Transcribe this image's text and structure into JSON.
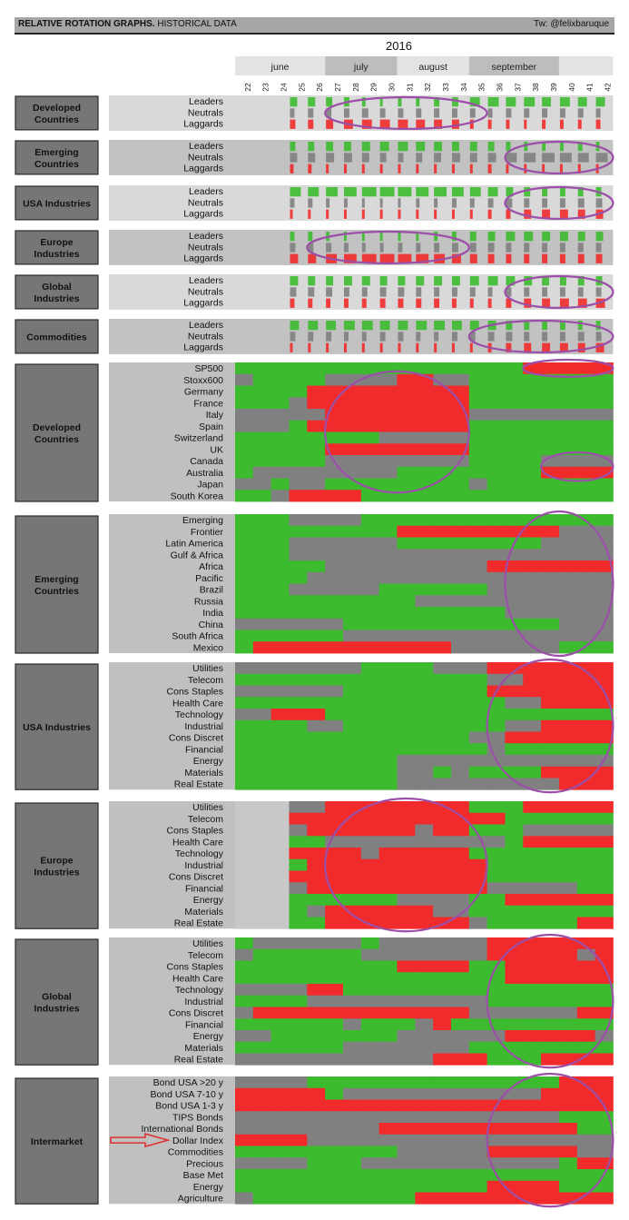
{
  "header": {
    "title_bold": "RELATIVE ROTATION GRAPHS.",
    "title_rest": " HISTORICAL DATA",
    "credit": "Tw: @felixbaruque"
  },
  "chart_data": {
    "type": "heatmap",
    "title": "2016",
    "months": [
      {
        "name": "june",
        "weeks": [
          22,
          23,
          24,
          25,
          26
        ]
      },
      {
        "name": "july",
        "weeks": [
          27,
          28,
          29,
          30
        ]
      },
      {
        "name": "august",
        "weeks": [
          31,
          32,
          33,
          34
        ]
      },
      {
        "name": "september",
        "weeks": [
          35,
          36,
          37,
          38,
          39
        ]
      }
    ],
    "weeks": [
      22,
      23,
      24,
      25,
      26,
      27,
      28,
      29,
      30,
      31,
      32,
      33,
      34,
      35,
      36,
      37,
      38,
      39,
      40,
      41,
      42
    ],
    "colors": {
      "leader": "#3dbb2f",
      "neutral": "#808080",
      "laggard": "#f12b2b",
      "empty": "#c8c8c8",
      "highlight": "#9b4fa8",
      "arrow": "#e03030"
    },
    "summary_sections": [
      {
        "group": "Developed Countries",
        "rows": [
          "Leaders",
          "Neutrals",
          "Laggards"
        ],
        "start_week": 25,
        "leaders": [
          0.4,
          0.4,
          0.35,
          0.3,
          0.2,
          0.15,
          0.2,
          0.2,
          0.3,
          0.35,
          0.55,
          0.6,
          0.55,
          0.6,
          0.5,
          0.55,
          0.5,
          0.5
        ],
        "neutrals": [
          0.25,
          0.3,
          0.3,
          0.3,
          0.35,
          0.3,
          0.3,
          0.3,
          0.3,
          0.3,
          0.3,
          0.25,
          0.3,
          0.3,
          0.3,
          0.3,
          0.3,
          0.25
        ],
        "laggards": [
          0.3,
          0.3,
          0.4,
          0.5,
          0.55,
          0.55,
          0.55,
          0.5,
          0.45,
          0.4,
          0.2,
          0.2,
          0.2,
          0.15,
          0.2,
          0.2,
          0.2,
          0.25
        ]
      },
      {
        "group": "Emerging Countries",
        "rows": [
          "Leaders",
          "Neutrals",
          "Laggards"
        ],
        "start_week": 25,
        "leaders": [
          0.3,
          0.35,
          0.4,
          0.4,
          0.45,
          0.5,
          0.55,
          0.5,
          0.45,
          0.4,
          0.4,
          0.35,
          0.25,
          0.2,
          0.2,
          0.2,
          0.25,
          0.2
        ],
        "neutrals": [
          0.4,
          0.4,
          0.45,
          0.45,
          0.4,
          0.35,
          0.3,
          0.35,
          0.4,
          0.45,
          0.4,
          0.45,
          0.6,
          0.65,
          0.7,
          0.65,
          0.6,
          0.65
        ],
        "laggards": [
          0.2,
          0.2,
          0.15,
          0.15,
          0.15,
          0.15,
          0.15,
          0.15,
          0.15,
          0.15,
          0.15,
          0.2,
          0.15,
          0.15,
          0.1,
          0.15,
          0.15,
          0.15
        ]
      },
      {
        "group": "USA Industries",
        "rows": [
          "Leaders",
          "Neutrals",
          "Laggards"
        ],
        "start_week": 25,
        "leaders": [
          0.6,
          0.6,
          0.65,
          0.7,
          0.8,
          0.8,
          0.75,
          0.7,
          0.7,
          0.65,
          0.6,
          0.55,
          0.4,
          0.35,
          0.3,
          0.3,
          0.3,
          0.3
        ],
        "neutrals": [
          0.25,
          0.25,
          0.2,
          0.2,
          0.15,
          0.15,
          0.15,
          0.2,
          0.2,
          0.25,
          0.25,
          0.3,
          0.35,
          0.3,
          0.3,
          0.3,
          0.35,
          0.35
        ],
        "laggards": [
          0.15,
          0.15,
          0.15,
          0.1,
          0.1,
          0.1,
          0.1,
          0.1,
          0.1,
          0.15,
          0.15,
          0.2,
          0.25,
          0.4,
          0.45,
          0.45,
          0.4,
          0.4
        ]
      },
      {
        "group": "Europe Industries",
        "rows": [
          "Leaders",
          "Neutrals",
          "Laggards"
        ],
        "start_week": 25,
        "leaders": [
          0.25,
          0.25,
          0.2,
          0.15,
          0.1,
          0.1,
          0.1,
          0.15,
          0.2,
          0.25,
          0.35,
          0.4,
          0.5,
          0.5,
          0.45,
          0.45,
          0.4,
          0.4
        ],
        "neutrals": [
          0.3,
          0.3,
          0.3,
          0.25,
          0.2,
          0.2,
          0.25,
          0.25,
          0.3,
          0.35,
          0.35,
          0.35,
          0.3,
          0.3,
          0.3,
          0.3,
          0.3,
          0.3
        ],
        "laggards": [
          0.45,
          0.45,
          0.6,
          0.7,
          0.8,
          0.8,
          0.75,
          0.7,
          0.6,
          0.5,
          0.4,
          0.35,
          0.3,
          0.3,
          0.3,
          0.3,
          0.35,
          0.35
        ]
      },
      {
        "group": "Global Industries",
        "rows": [
          "Leaders",
          "Neutrals",
          "Laggards"
        ],
        "start_week": 25,
        "leaders": [
          0.45,
          0.4,
          0.4,
          0.45,
          0.45,
          0.4,
          0.4,
          0.45,
          0.45,
          0.45,
          0.5,
          0.55,
          0.5,
          0.45,
          0.4,
          0.35,
          0.35,
          0.35
        ],
        "neutrals": [
          0.35,
          0.35,
          0.35,
          0.3,
          0.3,
          0.35,
          0.35,
          0.3,
          0.3,
          0.3,
          0.3,
          0.25,
          0.3,
          0.3,
          0.3,
          0.3,
          0.3,
          0.3
        ],
        "laggards": [
          0.25,
          0.25,
          0.25,
          0.25,
          0.25,
          0.3,
          0.3,
          0.3,
          0.3,
          0.25,
          0.2,
          0.2,
          0.3,
          0.4,
          0.45,
          0.5,
          0.5,
          0.5
        ]
      },
      {
        "group": "Commodities",
        "rows": [
          "Leaders",
          "Neutrals",
          "Laggards"
        ],
        "start_week": 25,
        "leaders": [
          0.5,
          0.55,
          0.55,
          0.6,
          0.6,
          0.55,
          0.55,
          0.6,
          0.6,
          0.55,
          0.5,
          0.45,
          0.35,
          0.3,
          0.3,
          0.3,
          0.25,
          0.25
        ],
        "neutrals": [
          0.3,
          0.3,
          0.3,
          0.25,
          0.25,
          0.3,
          0.3,
          0.25,
          0.25,
          0.3,
          0.3,
          0.35,
          0.35,
          0.3,
          0.3,
          0.3,
          0.35,
          0.3
        ],
        "laggards": [
          0.15,
          0.1,
          0.1,
          0.1,
          0.1,
          0.1,
          0.1,
          0.1,
          0.1,
          0.1,
          0.15,
          0.2,
          0.3,
          0.4,
          0.45,
          0.45,
          0.4,
          0.45
        ]
      }
    ],
    "detail_sections": [
      {
        "group": "Developed Countries",
        "rows": [
          {
            "label": "SP500",
            "states": "LLLLLLLLLLLLLLLLRRRRR"
          },
          {
            "label": "Stoxx600",
            "states": "NLLLLNNNNRRNNLLLLLLLL"
          },
          {
            "label": "Germany",
            "states": "LLLLRRRRRRRRRLLLLLLLL"
          },
          {
            "label": "France",
            "states": "LLLNRRRRRRRRRLLLLLLLL"
          },
          {
            "label": "Italy",
            "states": "NNNNNRRRRRRRRNNNNNNNN"
          },
          {
            "label": "Spain",
            "states": "NNNLRRRRRRRRRLLLLLLLL"
          },
          {
            "label": "Switzerland",
            "states": "LLLLLLLLNNNNNLLLLLLLL"
          },
          {
            "label": "UK",
            "states": "LLLLLRRRRRRRRLLLLLLLL"
          },
          {
            "label": "Canada",
            "states": "LLLLLNNNNNNNNLLLLNNNN"
          },
          {
            "label": "Australia",
            "states": "LNNNNNNNNLLLLLLLLRRRR"
          },
          {
            "label": "Japan",
            "states": "NNLNNLLLLLLLLNLLLLLLL"
          },
          {
            "label": "South Korea",
            "states": "LLNRRRRLLLLLLLLLLLLLL"
          }
        ]
      },
      {
        "group": "Emerging Countries",
        "rows": [
          {
            "label": "Emerging",
            "states": "LLLNNNNLLLLLLLLLLLLLL"
          },
          {
            "label": "Frontier",
            "states": "LLLLLLLLLRRRRRRRRRNNN"
          },
          {
            "label": "Latin America",
            "states": "LLLNNNNNNLLLLLLLLNNNN"
          },
          {
            "label": "Gulf & Africa",
            "states": "LLLNNNNNNNNNNNNNNNNNN"
          },
          {
            "label": "Africa",
            "states": "LLLLLNNNNNNNNNRRRRRRR"
          },
          {
            "label": "Pacific",
            "states": "LLLLNNNNNNNNNNNNNNNNN"
          },
          {
            "label": "Brazil",
            "states": "LLLNNNNNLLLLLLNNNNNNN"
          },
          {
            "label": "Russia",
            "states": "LLLLLLLLLLNNNNNNNNNNN"
          },
          {
            "label": "India",
            "states": "LLLLLLLLLLLLLLLNNNNNN"
          },
          {
            "label": "China",
            "states": "NNNNNNLLLLLLLLLLLLNNN"
          },
          {
            "label": "South Africa",
            "states": "LLLLLLNNNNNNNNNNNNNNN"
          },
          {
            "label": "Mexico",
            "states": "LRRRRRRRRRRRNNNNNNLLL"
          }
        ]
      },
      {
        "group": "USA Industries",
        "rows": [
          {
            "label": "Utilities",
            "states": "NNNNNNNLLLLNNNRRRRRRR"
          },
          {
            "label": "Telecom",
            "states": "LLLLLLLLLLLLLLNNRRRRR"
          },
          {
            "label": "Cons Staples",
            "states": "NNNNNNLLLLLLLLRRRRRRR"
          },
          {
            "label": "Health Care",
            "states": "LLLLLLLLLLLLLLLNNRRRR"
          },
          {
            "label": "Technology",
            "states": "NNRRRLLLLLLLLLLLLLLLL"
          },
          {
            "label": "Industrial",
            "states": "LLLLNNLLLLLLLLLNNRRRR"
          },
          {
            "label": "Cons Discret",
            "states": "LLLLLLLLLLLLLNNRRRRRR"
          },
          {
            "label": "Financial",
            "states": "LLLLLLLLLLLLLLNLLLLLL"
          },
          {
            "label": "Energy",
            "states": "LLLLLLLLLNNNNNNNNNNNN"
          },
          {
            "label": "Materials",
            "states": "LLLLLLLLLNNLNLLLLRRRR"
          },
          {
            "label": "Real Estate",
            "states": "LLLLLLLLLNNNNNNNNNRRR"
          }
        ]
      },
      {
        "group": "Europe Industries",
        "rows": [
          {
            "label": "Utilities",
            "states": "EEENNRRRRRRRRLLLRRRRR"
          },
          {
            "label": "Telecom",
            "states": "EEERRRRRRRRRRRRLLLLLL"
          },
          {
            "label": "Cons Staples",
            "states": "EEENRRRRRRNRRLLLNNNNN"
          },
          {
            "label": "Health Care",
            "states": "EEELLNNNNNNNNNNLRRRRR"
          },
          {
            "label": "Technology",
            "states": "EEERRRRNRRRRRLLLLLLLL"
          },
          {
            "label": "Industrial",
            "states": "EEELRRRRRRRRRRLLLLLLL"
          },
          {
            "label": "Cons Discret",
            "states": "EEERRRRRRRRRRRLLLLLLL"
          },
          {
            "label": "Financial",
            "states": "EEENRRRRRRRRRRNNNNNLL"
          },
          {
            "label": "Energy",
            "states": "EEELLLLLLNNNNLLRRRRRR"
          },
          {
            "label": "Materials",
            "states": "EEELNRRRRRRNNLLLLLLLL"
          },
          {
            "label": "Real Estate",
            "states": "EEELLRRRRRRRRNLLLLLRR"
          }
        ]
      },
      {
        "group": "Global Industries",
        "rows": [
          {
            "label": "Utilities",
            "states": "LNNNNNNLNNNNNNRRRRRRR"
          },
          {
            "label": "Telecom",
            "states": "NLLLLLLNNNNNNNRRRRRNR"
          },
          {
            "label": "Cons Staples",
            "states": "LLLLLLLLLRRRRLLRRRRRR"
          },
          {
            "label": "Health Care",
            "states": "LLLLLLLLLLLLLLLRRRRRR"
          },
          {
            "label": "Technology",
            "states": "NNNNRRLLLLLLLLLLLLLLL"
          },
          {
            "label": "Industrial",
            "states": "LLLLNNNNNNNNNNLLLLLLL"
          },
          {
            "label": "Cons Discret",
            "states": "NRRRRRRRRRRRRNNNNNNRR"
          },
          {
            "label": "Financial",
            "states": "LLLLLLNLLLNRLLLLLLLLL"
          },
          {
            "label": "Energy",
            "states": "NNLLLLLLLNNNNNNRRRRRN"
          },
          {
            "label": "Materials",
            "states": "LLLLLLNNNNNNNLLLLLLLL"
          },
          {
            "label": "Real Estate",
            "states": "NNNNNNNNNNNRRRLLLRRRR"
          }
        ]
      },
      {
        "group": "Intermarket",
        "rows": [
          {
            "label": "Bond USA >20 y",
            "states": "NNNNLLLLLLLLLLLLLLRRR"
          },
          {
            "label": "Bond USA 7-10 y",
            "states": "RRRRRLNNNNNNNNNNNRRRR"
          },
          {
            "label": "Bond USA 1-3 y",
            "states": "RRRRRRRRRRRRRRRRRRRRR"
          },
          {
            "label": "TIPS Bonds",
            "states": "NNNNNNNNNNNNNNNNNNLLL"
          },
          {
            "label": "International Bonds",
            "states": "NNNNNNNNRRRRRRRRRRRLL"
          },
          {
            "label": "Dollar Index",
            "states": "RRRRNNNNNNNNNNNNNNNNN"
          },
          {
            "label": "Commodities",
            "states": "LLLLLLLLLNNNNNRRRRRNN"
          },
          {
            "label": "Precious",
            "states": "NNNNLLLNNNNNNNNNNNLRR"
          },
          {
            "label": "Base Met",
            "states": "LLLLLLLLLLLLLLLLLLLLL"
          },
          {
            "label": "Energy",
            "states": "LLLLLLLLLLLLLLRRRRLLL"
          },
          {
            "label": "Agriculture",
            "states": "NLLLLLLLLLRRRRRRRRRRR"
          }
        ]
      }
    ],
    "highlights": [
      {
        "section": "summary",
        "group": "Developed Countries",
        "week_from": 27,
        "week_to": 35
      },
      {
        "section": "summary",
        "group": "Emerging Countries",
        "week_from": 37,
        "week_to": 42
      },
      {
        "section": "summary",
        "group": "USA Industries",
        "week_from": 37,
        "week_to": 42
      },
      {
        "section": "summary",
        "group": "Europe Industries",
        "week_from": 26,
        "week_to": 34
      },
      {
        "section": "summary",
        "group": "Global Industries",
        "week_from": 37,
        "week_to": 42
      },
      {
        "section": "summary",
        "group": "Commodities",
        "week_from": 35,
        "week_to": 42
      },
      {
        "section": "detail",
        "group": "Developed Countries",
        "row_from": 0,
        "row_to": 0,
        "week_from": 38,
        "week_to": 42
      },
      {
        "section": "detail",
        "group": "Developed Countries",
        "row_from": 1,
        "row_to": 10,
        "week_from": 27,
        "week_to": 34
      },
      {
        "section": "detail",
        "group": "Developed Countries",
        "row_from": 8,
        "row_to": 9,
        "week_from": 39,
        "week_to": 42
      },
      {
        "section": "detail",
        "group": "Emerging Countries",
        "row_from": 0,
        "row_to": 11,
        "week_from": 37,
        "week_to": 42
      },
      {
        "section": "detail",
        "group": "USA Industries",
        "row_from": 0,
        "row_to": 10,
        "week_from": 36,
        "week_to": 42
      },
      {
        "section": "detail",
        "group": "Europe Industries",
        "row_from": 0,
        "row_to": 10,
        "week_from": 27,
        "week_to": 35
      },
      {
        "section": "detail",
        "group": "Global Industries",
        "row_from": 0,
        "row_to": 10,
        "week_from": 36,
        "week_to": 42
      },
      {
        "section": "detail",
        "group": "Intermarket",
        "row_from": 0,
        "row_to": 10,
        "week_from": 36,
        "week_to": 42
      }
    ],
    "arrow_row": {
      "group": "Intermarket",
      "label": "Dollar Index"
    }
  }
}
